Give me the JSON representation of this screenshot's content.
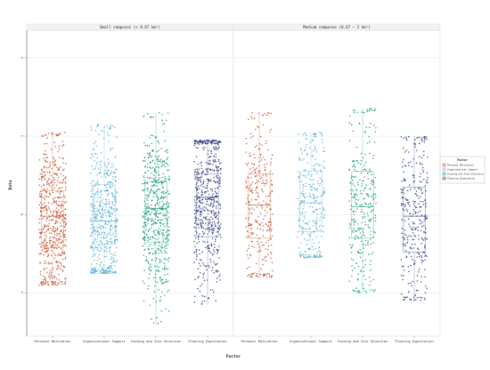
{
  "chart_data": {
    "type": "scatter",
    "subtype": "jittered-boxplot",
    "ylabel": "Data",
    "xlabel": "Factor",
    "categories": [
      "Personal Motivation",
      "Organizational Support",
      "Funding and Site Selection",
      "Planting Expectation"
    ],
    "y_ticks": [
      -1,
      0,
      1,
      2
    ],
    "ylim": [
      -1.55,
      2.35
    ],
    "grid": true,
    "legend": {
      "title": "Factor",
      "placement": "right",
      "entries": [
        "Personal Motivation",
        "Organizational Support",
        "Funding and Site Selection",
        "Planting Expectation"
      ]
    },
    "colors": [
      "#c4502a",
      "#5aaed4",
      "#1a9a78",
      "#2a3a7e"
    ],
    "panels": [
      {
        "strip": "Small campuses (< 0.67 km²)",
        "groups": [
          {
            "name": "Personal Motivation",
            "min": -0.9,
            "q1": -0.42,
            "median": -0.02,
            "q3": 0.3,
            "max": 1.05,
            "n": 560
          },
          {
            "name": "Organizational Support",
            "min": -0.75,
            "q1": -0.38,
            "median": -0.08,
            "q3": 0.38,
            "max": 1.15,
            "n": 560
          },
          {
            "name": "Funding and Site Selection",
            "min": -1.4,
            "q1": -0.35,
            "median": 0.08,
            "q3": 0.42,
            "max": 1.3,
            "n": 560
          },
          {
            "name": "Planting Expectation",
            "min": -1.15,
            "q1": -0.28,
            "median": 0.22,
            "q3": 0.52,
            "max": 0.95,
            "n": 560
          }
        ]
      },
      {
        "strip": "Medium campuses (0.67 – 2 km²)",
        "groups": [
          {
            "name": "Personal Motivation",
            "min": -0.8,
            "q1": -0.3,
            "median": 0.12,
            "q3": 0.52,
            "max": 1.3,
            "n": 300
          },
          {
            "name": "Organizational Support",
            "min": -0.55,
            "q1": -0.22,
            "median": 0.15,
            "q3": 0.55,
            "max": 1.05,
            "n": 300
          },
          {
            "name": "Funding and Site Selection",
            "min": -1.0,
            "q1": -0.3,
            "median": 0.1,
            "q3": 0.55,
            "max": 1.35,
            "n": 300
          },
          {
            "name": "Planting Expectation",
            "min": -1.1,
            "q1": -0.48,
            "median": -0.02,
            "q3": 0.35,
            "max": 1.0,
            "n": 300
          }
        ]
      }
    ]
  }
}
